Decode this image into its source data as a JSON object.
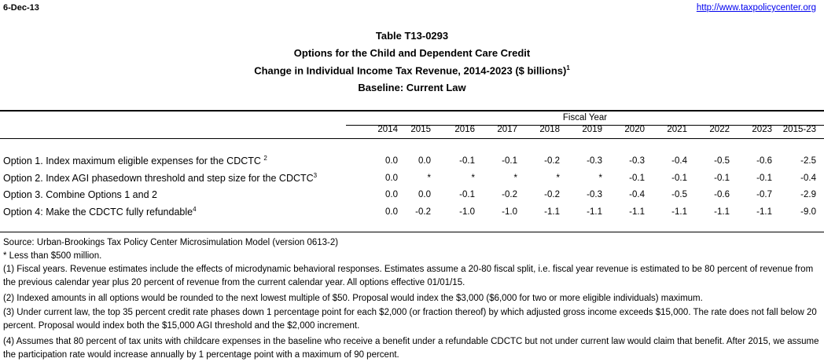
{
  "header": {
    "date": "6-Dec-13",
    "url": "http://www.taxpolicycenter.org"
  },
  "titles": {
    "table_id": "Table T13-0293",
    "subject": "Options for the Child and Dependent Care Credit",
    "measure": "Change in Individual Income Tax Revenue, 2014-2023 ($ billions)",
    "measure_sup": "1",
    "baseline": "Baseline: Current Law"
  },
  "table": {
    "group_header": "Fiscal Year",
    "columns": [
      "2014",
      "2015",
      "2016",
      "2017",
      "2018",
      "2019",
      "2020",
      "2021",
      "2022",
      "2023",
      "2015-23"
    ],
    "rows": [
      {
        "label": "Option 1. Index maximum eligible expenses for the CDCTC ",
        "sup": "2",
        "values": [
          "0.0",
          "0.0",
          "-0.1",
          "-0.1",
          "-0.2",
          "-0.3",
          "-0.3",
          "-0.4",
          "-0.5",
          "-0.6",
          "-2.5"
        ]
      },
      {
        "label": "Option 2. Index AGI phasedown threshold and step size for the CDCTC",
        "sup": "3",
        "values": [
          "0.0",
          "*",
          "*",
          "*",
          "*",
          "*",
          "-0.1",
          "-0.1",
          "-0.1",
          "-0.1",
          "-0.4"
        ]
      },
      {
        "label": "Option 3. Combine Options 1 and 2",
        "sup": "",
        "values": [
          "0.0",
          "0.0",
          "-0.1",
          "-0.2",
          "-0.2",
          "-0.3",
          "-0.4",
          "-0.5",
          "-0.6",
          "-0.7",
          "-2.9"
        ]
      },
      {
        "label": "Option 4: Make the CDCTC fully refundable",
        "sup": "4",
        "values": [
          "0.0",
          "-0.2",
          "-1.0",
          "-1.0",
          "-1.1",
          "-1.1",
          "-1.1",
          "-1.1",
          "-1.1",
          "-1.1",
          "-9.0"
        ]
      }
    ]
  },
  "notes": {
    "source": "Source: Urban-Brookings Tax Policy Center Microsimulation Model (version 0613-2)",
    "asterisk": "* Less than $500 million.",
    "n1": "(1) Fiscal years. Revenue estimates include the effects of microdynamic behavioral responses. Estimates assume a 20-80 fiscal split, i.e. fiscal year revenue is estimated to be 80 percent of revenue from the previous calendar year plus 20 percent of revenue from the current calendar year. All options effective 01/01/15.",
    "n2": "(2) Indexed amounts in all options would be rounded to the next lowest multiple of $50. Proposal would index the $3,000 ($6,000 for two or more eligible individuals) maximum.",
    "n3": "(3) Under current law, the top 35 percent credit rate phases down 1 percentage point for each $2,000 (or fraction thereof) by which adjusted gross income exceeds $15,000. The rate does not fall below 20 percent. Proposal would index both the $15,000 AGI threshold and the $2,000 increment.",
    "n4": "(4) Assumes that 80 percent of tax units with childcare expenses in the baseline who receive a benefit under a refundable CDCTC but not under current law would claim that benefit. After 2015, we assume the participation rate would increase annually by 1 percentage point with a maximum of 90 percent."
  }
}
